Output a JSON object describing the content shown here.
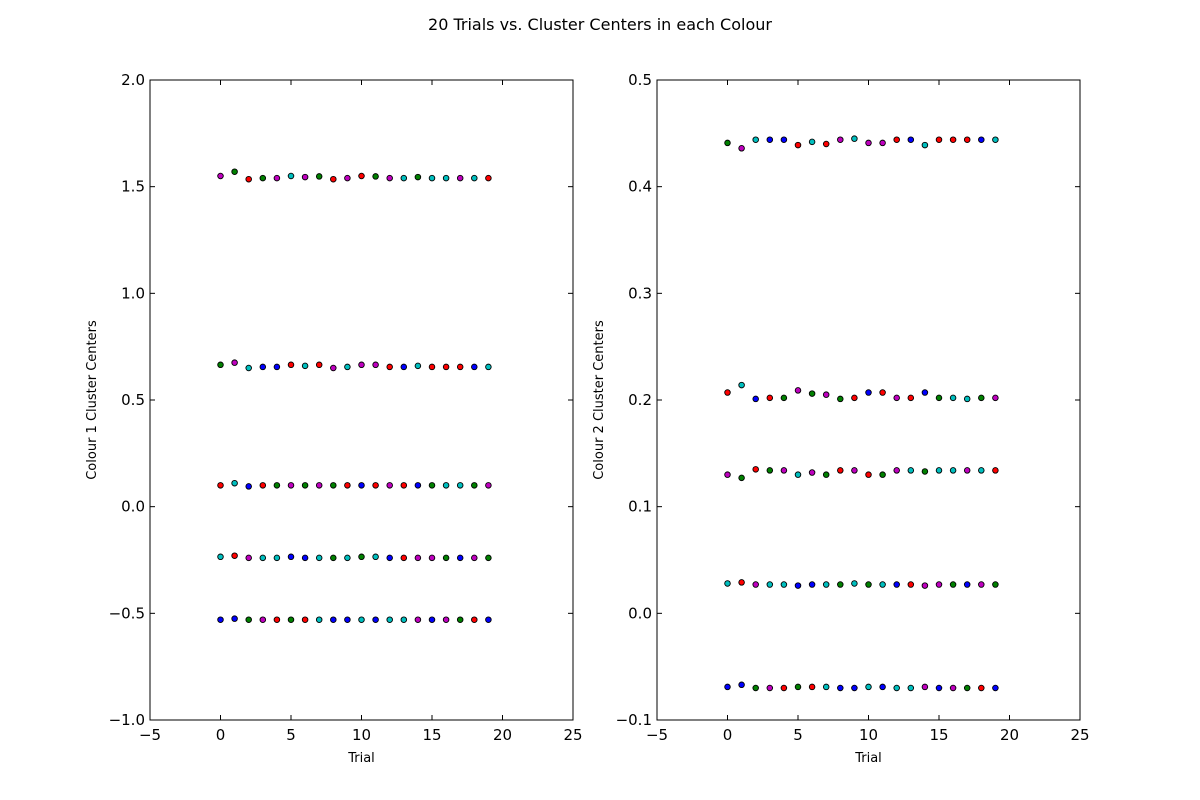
{
  "figure": {
    "suptitle": "20 Trials vs. Cluster Centers in each Colour"
  },
  "palette": {
    "b": "#0000ff",
    "g": "#008000",
    "r": "#ff0000",
    "c": "#00bfbf",
    "m": "#bf00bf"
  },
  "chart_data": [
    {
      "type": "scatter",
      "title": "",
      "xlabel": "Trial",
      "ylabel": "Colour 1 Cluster Centers",
      "xlim": [
        -5,
        25
      ],
      "ylim": [
        -1.0,
        2.0
      ],
      "xticks": [
        -5,
        0,
        5,
        10,
        15,
        20,
        25
      ],
      "xtick_labels": [
        "−5",
        "0",
        "5",
        "10",
        "15",
        "20",
        "25"
      ],
      "yticks": [
        -1.0,
        -0.5,
        0.0,
        0.5,
        1.0,
        1.5,
        2.0
      ],
      "ytick_labels": [
        "−1.0",
        "−0.5",
        "0.0",
        "0.5",
        "1.0",
        "1.5",
        "2.0"
      ],
      "grid": false,
      "x": [
        0,
        1,
        2,
        3,
        4,
        5,
        6,
        7,
        8,
        9,
        10,
        11,
        12,
        13,
        14,
        15,
        16,
        17,
        18,
        19
      ],
      "series": [
        {
          "values": [
            1.55,
            1.57,
            1.535,
            1.54,
            1.54,
            1.55,
            1.545,
            1.548,
            1.535,
            1.54,
            1.55,
            1.548,
            1.54,
            1.54,
            1.545,
            1.54,
            1.54,
            1.54,
            1.54,
            1.54
          ],
          "colors": [
            "m",
            "g",
            "r",
            "g",
            "m",
            "c",
            "m",
            "g",
            "r",
            "m",
            "r",
            "g",
            "m",
            "c",
            "g",
            "c",
            "c",
            "m",
            "c",
            "r"
          ]
        },
        {
          "values": [
            0.665,
            0.675,
            0.65,
            0.655,
            0.655,
            0.665,
            0.66,
            0.665,
            0.65,
            0.655,
            0.665,
            0.665,
            0.655,
            0.655,
            0.66,
            0.655,
            0.655,
            0.655,
            0.655,
            0.655
          ],
          "colors": [
            "g",
            "m",
            "c",
            "b",
            "b",
            "r",
            "c",
            "r",
            "m",
            "c",
            "m",
            "m",
            "r",
            "b",
            "c",
            "r",
            "r",
            "r",
            "b",
            "c"
          ]
        },
        {
          "values": [
            0.1,
            0.11,
            0.095,
            0.1,
            0.1,
            0.1,
            0.1,
            0.1,
            0.1,
            0.1,
            0.1,
            0.1,
            0.1,
            0.1,
            0.1,
            0.1,
            0.1,
            0.1,
            0.1,
            0.1
          ],
          "colors": [
            "r",
            "c",
            "b",
            "r",
            "g",
            "m",
            "g",
            "m",
            "g",
            "r",
            "b",
            "r",
            "m",
            "r",
            "b",
            "g",
            "c",
            "c",
            "g",
            "m"
          ]
        },
        {
          "values": [
            -0.235,
            -0.23,
            -0.24,
            -0.24,
            -0.24,
            -0.235,
            -0.24,
            -0.24,
            -0.24,
            -0.24,
            -0.235,
            -0.235,
            -0.24,
            -0.24,
            -0.24,
            -0.24,
            -0.24,
            -0.24,
            -0.24,
            -0.24
          ],
          "colors": [
            "c",
            "r",
            "m",
            "c",
            "c",
            "b",
            "b",
            "c",
            "g",
            "c",
            "g",
            "c",
            "b",
            "r",
            "m",
            "m",
            "g",
            "b",
            "m",
            "g"
          ]
        },
        {
          "values": [
            -0.53,
            -0.525,
            -0.53,
            -0.53,
            -0.53,
            -0.53,
            -0.53,
            -0.53,
            -0.53,
            -0.53,
            -0.53,
            -0.53,
            -0.53,
            -0.53,
            -0.53,
            -0.53,
            -0.53,
            -0.53,
            -0.53,
            -0.53
          ],
          "colors": [
            "b",
            "b",
            "g",
            "m",
            "r",
            "g",
            "r",
            "c",
            "b",
            "b",
            "c",
            "b",
            "c",
            "c",
            "m",
            "b",
            "m",
            "g",
            "r",
            "b"
          ]
        }
      ]
    },
    {
      "type": "scatter",
      "title": "",
      "xlabel": "Trial",
      "ylabel": "Colour 2 Cluster Centers",
      "xlim": [
        -5,
        25
      ],
      "ylim": [
        -0.1,
        0.5
      ],
      "xticks": [
        -5,
        0,
        5,
        10,
        15,
        20,
        25
      ],
      "xtick_labels": [
        "−5",
        "0",
        "5",
        "10",
        "15",
        "20",
        "25"
      ],
      "yticks": [
        -0.1,
        0.0,
        0.1,
        0.2,
        0.3,
        0.4,
        0.5
      ],
      "ytick_labels": [
        "−0.1",
        "0.0",
        "0.1",
        "0.2",
        "0.3",
        "0.4",
        "0.5"
      ],
      "grid": false,
      "x": [
        0,
        1,
        2,
        3,
        4,
        5,
        6,
        7,
        8,
        9,
        10,
        11,
        12,
        13,
        14,
        15,
        16,
        17,
        18,
        19
      ],
      "series": [
        {
          "values": [
            0.441,
            0.436,
            0.444,
            0.444,
            0.444,
            0.439,
            0.442,
            0.44,
            0.444,
            0.445,
            0.441,
            0.441,
            0.444,
            0.444,
            0.439,
            0.444,
            0.444,
            0.444,
            0.444,
            0.444
          ],
          "colors": [
            "g",
            "m",
            "c",
            "b",
            "b",
            "r",
            "c",
            "r",
            "m",
            "c",
            "m",
            "m",
            "r",
            "b",
            "c",
            "r",
            "r",
            "r",
            "b",
            "c"
          ]
        },
        {
          "values": [
            0.207,
            0.214,
            0.201,
            0.202,
            0.202,
            0.209,
            0.206,
            0.205,
            0.201,
            0.202,
            0.207,
            0.207,
            0.202,
            0.202,
            0.207,
            0.202,
            0.202,
            0.201,
            0.202,
            0.202
          ],
          "colors": [
            "r",
            "c",
            "b",
            "r",
            "g",
            "m",
            "g",
            "m",
            "g",
            "r",
            "b",
            "r",
            "m",
            "r",
            "b",
            "g",
            "c",
            "c",
            "g",
            "m"
          ]
        },
        {
          "values": [
            0.13,
            0.127,
            0.135,
            0.134,
            0.134,
            0.13,
            0.132,
            0.13,
            0.134,
            0.134,
            0.13,
            0.13,
            0.134,
            0.134,
            0.133,
            0.134,
            0.134,
            0.134,
            0.134,
            0.134
          ],
          "colors": [
            "m",
            "g",
            "r",
            "g",
            "m",
            "c",
            "m",
            "g",
            "r",
            "m",
            "r",
            "g",
            "m",
            "c",
            "g",
            "c",
            "c",
            "m",
            "c",
            "r"
          ]
        },
        {
          "values": [
            0.028,
            0.029,
            0.027,
            0.027,
            0.027,
            0.026,
            0.027,
            0.027,
            0.027,
            0.028,
            0.027,
            0.027,
            0.027,
            0.027,
            0.026,
            0.027,
            0.027,
            0.027,
            0.027,
            0.027
          ],
          "colors": [
            "c",
            "r",
            "m",
            "c",
            "c",
            "b",
            "b",
            "c",
            "g",
            "c",
            "g",
            "c",
            "b",
            "r",
            "m",
            "m",
            "g",
            "b",
            "m",
            "g"
          ]
        },
        {
          "values": [
            -0.069,
            -0.067,
            -0.07,
            -0.07,
            -0.07,
            -0.069,
            -0.069,
            -0.069,
            -0.07,
            -0.07,
            -0.069,
            -0.069,
            -0.07,
            -0.07,
            -0.069,
            -0.07,
            -0.07,
            -0.07,
            -0.07,
            -0.07
          ],
          "colors": [
            "b",
            "b",
            "g",
            "m",
            "r",
            "g",
            "r",
            "c",
            "b",
            "b",
            "c",
            "b",
            "c",
            "c",
            "m",
            "b",
            "m",
            "g",
            "r",
            "b"
          ]
        }
      ]
    }
  ]
}
